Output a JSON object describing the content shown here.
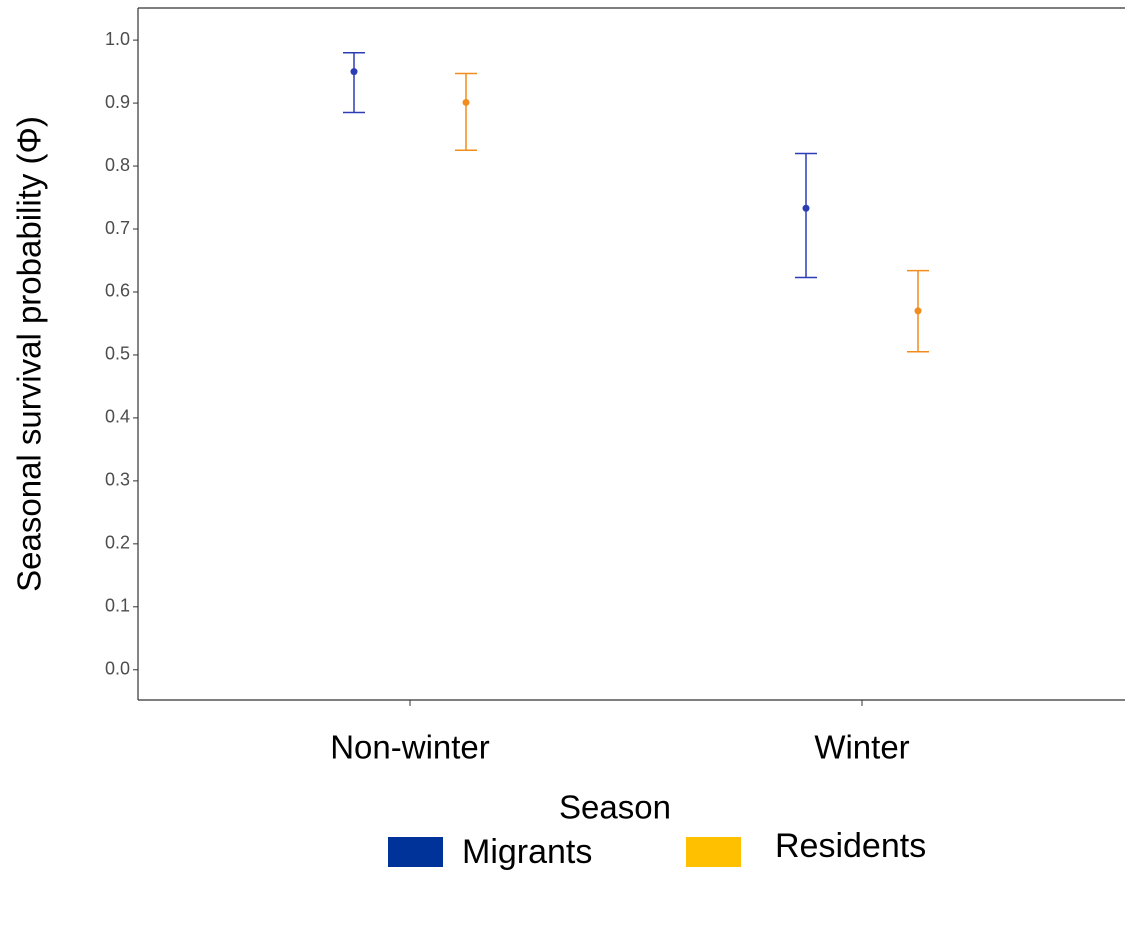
{
  "chart_data": {
    "type": "errorpoint",
    "xlabel": "Season",
    "ylabel": "Seasonal survival probability (Φ)",
    "categories": [
      "Non-winter",
      "Winter"
    ],
    "series": [
      {
        "name": "Migrants",
        "color": "#2a3db5",
        "legend_color": "#003399",
        "values": [
          0.95,
          0.733
        ],
        "lower": [
          0.885,
          0.623
        ],
        "upper": [
          0.98,
          0.82
        ]
      },
      {
        "name": "Residents",
        "color": "#f28c1c",
        "legend_color": "#ffc000",
        "values": [
          0.901,
          0.57
        ],
        "lower": [
          0.825,
          0.505
        ],
        "upper": [
          0.947,
          0.634
        ]
      }
    ],
    "ylim": [
      -0.048,
      1.051
    ],
    "yticks": [
      {
        "value": 0,
        "label": "0.0"
      },
      0.1,
      0.2,
      0.3,
      0.4,
      0.5,
      0.6,
      0.7,
      0.8,
      0.9,
      {
        "value": 1,
        "label": "1.0"
      }
    ],
    "legend": "bottom"
  }
}
